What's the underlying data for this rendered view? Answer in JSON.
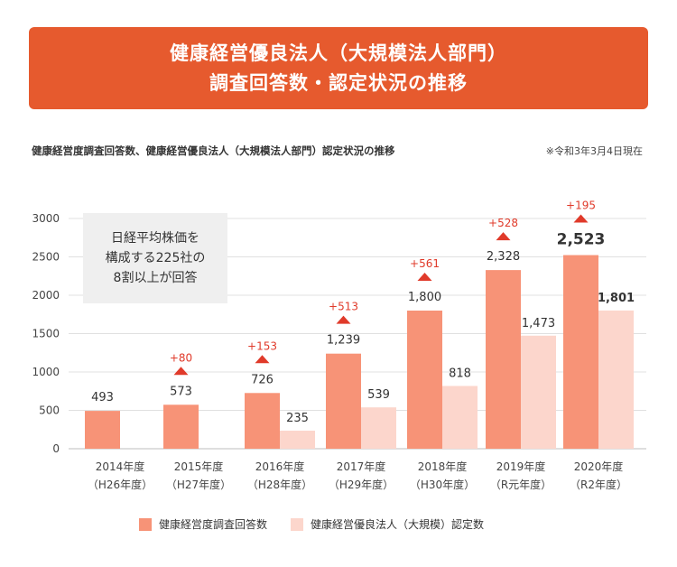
{
  "banner": {
    "line1": "健康経営優良法人（大規模法人部門）",
    "line2": "調査回答数・認定状況の推移"
  },
  "subtitle": "健康経営度調査回答数、健康経営優良法人（大規模法人部門）認定状況の推移",
  "note": "※令和3年3月4日現在",
  "infobox": {
    "line1": "日経平均株価を",
    "line2": "構成する225社の",
    "line3": "8割以上が回答"
  },
  "legend": {
    "series1": "健康経営度調査回答数",
    "series2": "健康経営優良法人（大規模）認定数"
  },
  "colors": {
    "banner": "#e65a2e",
    "series1": "#f79377",
    "series2": "#fcd6cc",
    "increase": "#e03a2a",
    "grid": "#e0e0e0"
  },
  "chart_data": {
    "type": "bar",
    "title": "健康経営度調査回答数、健康経営優良法人（大規模法人部門）認定状況の推移",
    "categories": [
      "2014年度",
      "2015年度",
      "2016年度",
      "2017年度",
      "2018年度",
      "2019年度",
      "2020年度"
    ],
    "subcategories": [
      "（H26年度）",
      "（H27年度）",
      "（H28年度）",
      "（H29年度）",
      "（H30年度）",
      "（R元年度）",
      "（R2年度）"
    ],
    "series": [
      {
        "name": "健康経営度調査回答数",
        "values": [
          493,
          573,
          726,
          1239,
          1800,
          2328,
          2523
        ],
        "labels": [
          "493",
          "573",
          "726",
          "1,239",
          "1,800",
          "2,328",
          "2,523"
        ]
      },
      {
        "name": "健康経営優良法人（大規模）認定数",
        "values": [
          null,
          null,
          235,
          539,
          818,
          1473,
          1801
        ],
        "labels": [
          "",
          "",
          "235",
          "539",
          "818",
          "1,473",
          "1,801"
        ]
      }
    ],
    "increases": [
      "",
      "+80",
      "+153",
      "+513",
      "+561",
      "+528",
      "+195"
    ],
    "yticks": [
      0,
      500,
      1000,
      1500,
      2000,
      2500,
      3000
    ],
    "ylim": [
      0,
      3000
    ],
    "xlabel": "",
    "ylabel": ""
  }
}
